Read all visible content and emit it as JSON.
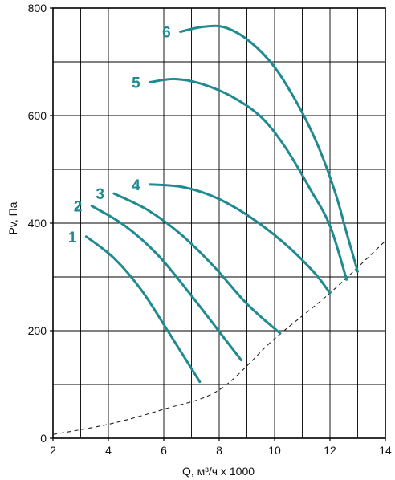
{
  "chart_data": {
    "type": "line",
    "xlabel": "Q, м³/ч x 1000",
    "ylabel": "Pv, Па",
    "xlim": [
      2,
      14
    ],
    "ylim": [
      0,
      800
    ],
    "x_ticks": [
      "2",
      "4",
      "6",
      "8",
      "10",
      "12",
      "14"
    ],
    "y_ticks": [
      "0",
      "200",
      "400",
      "600",
      "800"
    ],
    "grid": true,
    "colors": {
      "curve": "#1f8a8f",
      "label": "#1f8a8f",
      "grid": "#000000",
      "system_curve": "#222222"
    },
    "series": [
      {
        "label": "1",
        "points": [
          [
            3.2,
            375
          ],
          [
            4.2,
            335
          ],
          [
            5.2,
            275
          ],
          [
            6.2,
            195
          ],
          [
            7.3,
            105
          ]
        ]
      },
      {
        "label": "2",
        "points": [
          [
            3.4,
            432
          ],
          [
            4.6,
            395
          ],
          [
            5.8,
            340
          ],
          [
            7.0,
            265
          ],
          [
            8.2,
            185
          ],
          [
            8.8,
            145
          ]
        ]
      },
      {
        "label": "3",
        "points": [
          [
            4.2,
            455
          ],
          [
            5.4,
            425
          ],
          [
            6.6,
            380
          ],
          [
            7.8,
            320
          ],
          [
            9.0,
            250
          ],
          [
            10.2,
            195
          ]
        ]
      },
      {
        "label": "4",
        "points": [
          [
            5.5,
            472
          ],
          [
            6.7,
            467
          ],
          [
            7.9,
            447
          ],
          [
            9.1,
            412
          ],
          [
            10.3,
            365
          ],
          [
            11.4,
            310
          ],
          [
            12.0,
            270
          ]
        ]
      },
      {
        "label": "5",
        "points": [
          [
            5.5,
            662
          ],
          [
            6.4,
            668
          ],
          [
            7.3,
            660
          ],
          [
            8.4,
            637
          ],
          [
            9.5,
            598
          ],
          [
            10.4,
            540
          ],
          [
            11.3,
            462
          ],
          [
            12.0,
            395
          ],
          [
            12.6,
            295
          ]
        ]
      },
      {
        "label": "6",
        "points": [
          [
            6.6,
            756
          ],
          [
            7.4,
            765
          ],
          [
            8.2,
            764
          ],
          [
            9.1,
            738
          ],
          [
            10.0,
            690
          ],
          [
            10.9,
            615
          ],
          [
            11.6,
            540
          ],
          [
            12.2,
            455
          ],
          [
            12.6,
            382
          ],
          [
            13.0,
            310
          ]
        ]
      }
    ],
    "system_curve": {
      "style": "dashed",
      "points": [
        [
          2.0,
          7
        ],
        [
          4.0,
          26
        ],
        [
          6.0,
          54
        ],
        [
          8.0,
          90
        ],
        [
          10.0,
          185
        ],
        [
          12.0,
          270
        ],
        [
          14.0,
          367
        ]
      ]
    }
  }
}
